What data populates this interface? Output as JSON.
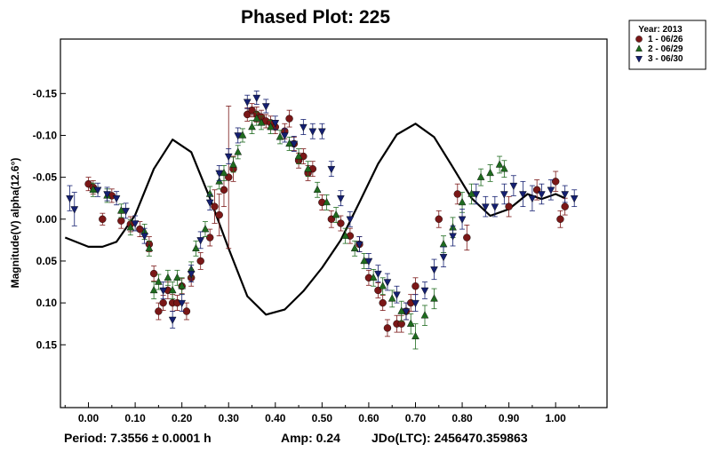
{
  "chart_data": {
    "type": "scatter",
    "title": "Phased Plot: 225",
    "ylabel": "Magnitude(V) alpha(12.6°)",
    "xlabel": "",
    "xlim": [
      -0.06,
      1.11
    ],
    "ylim": [
      -0.215,
      0.225
    ],
    "y_inverted": true,
    "x_ticks": [
      0.0,
      0.1,
      0.2,
      0.3,
      0.4,
      0.5,
      0.6,
      0.7,
      0.8,
      0.9,
      1.0
    ],
    "x_tick_labels": [
      "0.00",
      "0.10",
      "0.20",
      "0.30",
      "0.40",
      "0.50",
      "0.60",
      "0.70",
      "0.80",
      "0.90",
      "1.00"
    ],
    "y_ticks": [
      -0.15,
      -0.1,
      -0.05,
      0.0,
      0.05,
      0.1,
      0.15
    ],
    "y_tick_labels": [
      "-0.15",
      "-0.10",
      "-0.05",
      "0.00",
      "0.05",
      "0.10",
      "0.15"
    ],
    "legend": {
      "title": "Year: 2013",
      "position": "top-right outside",
      "entries": [
        "1 - 06/26",
        "2 - 06/29",
        "3 - 06/30"
      ]
    },
    "fit_curve": {
      "name": "Fourier fit",
      "x": [
        -0.05,
        0.0,
        0.03,
        0.06,
        0.1,
        0.14,
        0.18,
        0.22,
        0.26,
        0.3,
        0.34,
        0.38,
        0.42,
        0.46,
        0.5,
        0.54,
        0.58,
        0.62,
        0.66,
        0.7,
        0.74,
        0.78,
        0.82,
        0.86,
        0.9,
        0.94,
        0.97,
        1.0,
        1.02
      ],
      "y": [
        0.022,
        0.033,
        0.033,
        0.027,
        -0.005,
        -0.06,
        -0.095,
        -0.08,
        -0.025,
        0.035,
        0.092,
        0.114,
        0.108,
        0.086,
        0.058,
        0.025,
        -0.02,
        -0.066,
        -0.101,
        -0.114,
        -0.098,
        -0.062,
        -0.025,
        -0.004,
        -0.012,
        -0.03,
        -0.024,
        -0.03,
        -0.025
      ]
    },
    "series": [
      {
        "name": "1 - 06/26",
        "color": "#7a1717",
        "marker": "circle",
        "x": [
          0.0,
          0.01,
          0.03,
          0.05,
          0.07,
          0.09,
          0.11,
          0.13,
          0.14,
          0.15,
          0.16,
          0.17,
          0.18,
          0.19,
          0.2,
          0.21,
          0.22,
          0.24,
          0.26,
          0.27,
          0.28,
          0.29,
          0.3,
          0.31,
          0.34,
          0.35,
          0.36,
          0.37,
          0.38,
          0.39,
          0.4,
          0.42,
          0.43,
          0.44,
          0.45,
          0.46,
          0.47,
          0.48,
          0.5,
          0.52,
          0.54,
          0.56,
          0.58,
          0.6,
          0.62,
          0.63,
          0.64,
          0.66,
          0.67,
          0.68,
          0.69,
          0.7,
          0.75,
          0.79,
          0.81,
          0.9,
          0.96,
          1.0,
          1.01,
          1.02
        ],
        "y": [
          -0.042,
          -0.038,
          0.0,
          -0.028,
          0.002,
          0.006,
          0.012,
          0.03,
          0.065,
          0.11,
          0.1,
          0.085,
          0.1,
          0.1,
          0.08,
          0.11,
          0.07,
          0.05,
          0.022,
          -0.015,
          -0.005,
          -0.035,
          -0.05,
          -0.06,
          -0.125,
          -0.13,
          -0.125,
          -0.122,
          -0.117,
          -0.115,
          -0.11,
          -0.105,
          -0.12,
          -0.09,
          -0.07,
          -0.075,
          -0.055,
          -0.06,
          -0.02,
          0.0,
          0.005,
          0.02,
          0.03,
          0.07,
          0.085,
          0.1,
          0.13,
          0.125,
          0.125,
          0.11,
          0.1,
          0.08,
          0.0,
          -0.03,
          0.022,
          -0.015,
          -0.035,
          -0.045,
          0.0,
          -0.015
        ],
        "err": [
          0.008,
          0.008,
          0.007,
          0.008,
          0.009,
          0.009,
          0.009,
          0.009,
          0.009,
          0.01,
          0.009,
          0.01,
          0.01,
          0.009,
          0.009,
          0.01,
          0.01,
          0.01,
          0.01,
          0.02,
          0.025,
          0.02,
          0.085,
          0.015,
          0.008,
          0.008,
          0.009,
          0.008,
          0.008,
          0.008,
          0.008,
          0.009,
          0.01,
          0.008,
          0.009,
          0.009,
          0.009,
          0.009,
          0.009,
          0.01,
          0.009,
          0.009,
          0.009,
          0.009,
          0.009,
          0.009,
          0.01,
          0.01,
          0.01,
          0.01,
          0.01,
          0.01,
          0.01,
          0.012,
          0.015,
          0.012,
          0.012,
          0.012,
          0.01,
          0.01
        ]
      },
      {
        "name": "2 - 06/29",
        "color": "#1f6b1f",
        "marker": "triangle-up",
        "x": [
          0.01,
          0.04,
          0.07,
          0.09,
          0.12,
          0.13,
          0.14,
          0.15,
          0.17,
          0.18,
          0.19,
          0.2,
          0.22,
          0.23,
          0.25,
          0.26,
          0.28,
          0.29,
          0.31,
          0.32,
          0.33,
          0.35,
          0.36,
          0.37,
          0.39,
          0.41,
          0.43,
          0.45,
          0.47,
          0.49,
          0.51,
          0.53,
          0.55,
          0.57,
          0.59,
          0.61,
          0.63,
          0.65,
          0.67,
          0.69,
          0.7,
          0.72,
          0.74,
          0.76,
          0.78,
          0.8,
          0.82,
          0.84,
          0.86,
          0.88,
          0.89
        ],
        "y": [
          -0.035,
          -0.028,
          -0.01,
          0.01,
          0.015,
          0.035,
          0.085,
          0.075,
          0.07,
          0.085,
          0.07,
          0.08,
          0.06,
          0.035,
          0.012,
          -0.03,
          -0.045,
          -0.055,
          -0.065,
          -0.08,
          -0.1,
          -0.11,
          -0.12,
          -0.115,
          -0.11,
          -0.098,
          -0.09,
          -0.075,
          -0.06,
          -0.035,
          -0.02,
          -0.005,
          0.02,
          0.035,
          0.05,
          0.07,
          0.08,
          0.095,
          0.11,
          0.125,
          0.14,
          0.115,
          0.095,
          0.03,
          0.01,
          -0.02,
          -0.03,
          -0.05,
          -0.055,
          -0.065,
          -0.06
        ],
        "err": [
          0.008,
          0.008,
          0.008,
          0.009,
          0.009,
          0.009,
          0.01,
          0.009,
          0.009,
          0.01,
          0.009,
          0.01,
          0.009,
          0.009,
          0.009,
          0.009,
          0.009,
          0.009,
          0.009,
          0.008,
          0.008,
          0.008,
          0.008,
          0.008,
          0.008,
          0.008,
          0.008,
          0.009,
          0.009,
          0.009,
          0.009,
          0.009,
          0.009,
          0.009,
          0.009,
          0.01,
          0.01,
          0.01,
          0.012,
          0.012,
          0.015,
          0.012,
          0.012,
          0.01,
          0.012,
          0.012,
          0.012,
          0.01,
          0.01,
          0.01,
          0.01
        ]
      },
      {
        "name": "3 - 06/30",
        "color": "#141f70",
        "marker": "triangle-down",
        "x": [
          -0.04,
          -0.03,
          0.02,
          0.04,
          0.06,
          0.08,
          0.1,
          0.12,
          0.16,
          0.18,
          0.2,
          0.22,
          0.24,
          0.26,
          0.28,
          0.3,
          0.32,
          0.34,
          0.36,
          0.38,
          0.4,
          0.42,
          0.44,
          0.46,
          0.48,
          0.5,
          0.52,
          0.54,
          0.56,
          0.58,
          0.6,
          0.62,
          0.64,
          0.66,
          0.68,
          0.7,
          0.72,
          0.74,
          0.76,
          0.78,
          0.8,
          0.83,
          0.85,
          0.87,
          0.89,
          0.91,
          0.93,
          0.95,
          0.97,
          0.99,
          1.02,
          1.04
        ],
        "y": [
          -0.025,
          -0.012,
          -0.035,
          -0.03,
          -0.025,
          -0.01,
          0.005,
          0.02,
          0.085,
          0.12,
          0.1,
          0.065,
          0.025,
          -0.02,
          -0.055,
          -0.075,
          -0.1,
          -0.14,
          -0.145,
          -0.135,
          -0.115,
          -0.1,
          -0.09,
          -0.11,
          -0.105,
          -0.105,
          -0.06,
          -0.025,
          0.0,
          0.03,
          0.05,
          0.065,
          0.075,
          0.09,
          0.11,
          0.1,
          0.085,
          0.06,
          0.045,
          0.02,
          0.0,
          -0.03,
          -0.015,
          -0.015,
          -0.03,
          -0.04,
          -0.03,
          -0.025,
          -0.03,
          -0.035,
          -0.03,
          -0.025
        ],
        "err": [
          0.015,
          0.02,
          0.008,
          0.008,
          0.008,
          0.009,
          0.009,
          0.009,
          0.01,
          0.01,
          0.01,
          0.01,
          0.01,
          0.009,
          0.009,
          0.009,
          0.009,
          0.008,
          0.008,
          0.008,
          0.008,
          0.008,
          0.009,
          0.009,
          0.009,
          0.009,
          0.009,
          0.009,
          0.009,
          0.009,
          0.009,
          0.01,
          0.01,
          0.01,
          0.01,
          0.01,
          0.01,
          0.012,
          0.012,
          0.012,
          0.012,
          0.012,
          0.012,
          0.012,
          0.012,
          0.012,
          0.015,
          0.015,
          0.012,
          0.012,
          0.01,
          0.01
        ]
      }
    ],
    "footer": {
      "period": "Period: 7.3556 ± 0.0001 h",
      "amp": "Amp: 0.24",
      "jdo": "JDo(LTC): 2456470.359863"
    }
  }
}
